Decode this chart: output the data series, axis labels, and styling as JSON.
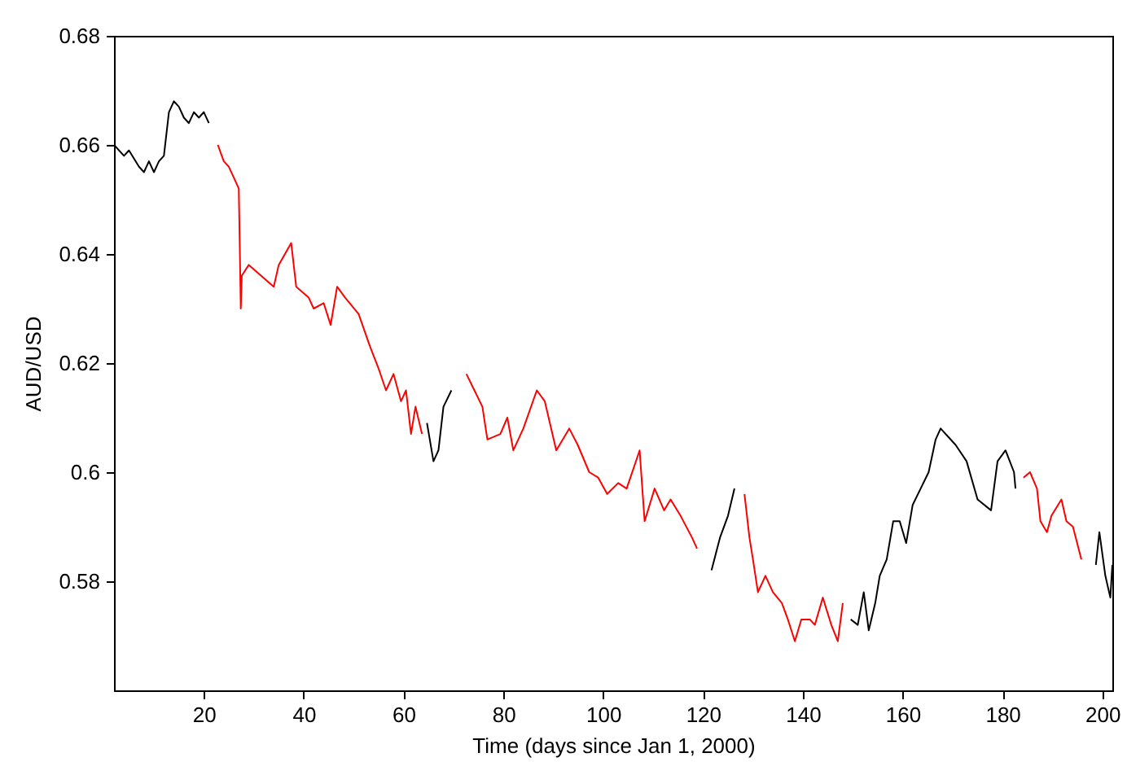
{
  "chart_data": {
    "type": "line",
    "xlabel": "Time (days since Jan 1, 2000)",
    "ylabel": "AUD/USD",
    "xlim": [
      2,
      202
    ],
    "xticks": [
      20,
      40,
      60,
      80,
      100,
      120,
      140,
      160,
      180,
      200
    ],
    "ylim": [
      0.56,
      0.68
    ],
    "yticks": [
      0.58,
      0.6,
      0.62,
      0.64,
      0.66,
      0.68
    ],
    "grid": false,
    "line_style": "solid",
    "marker": "none",
    "series": [
      {
        "color": "#000000",
        "x": [
          2,
          4,
          5,
          7,
          8,
          9,
          10,
          11,
          12,
          13,
          14,
          15,
          16,
          17,
          18,
          19,
          20,
          21,
          21.5,
          64.7,
          66,
          67,
          68,
          69.6,
          70,
          121.7,
          123.4,
          125,
          126.3,
          127,
          149.6,
          151,
          152.2,
          153.2,
          154.5,
          155.4,
          156.8,
          158.1,
          159.4,
          160.7,
          162,
          163.6,
          165.2,
          166.6,
          167.6,
          170.6,
          172.8,
          175,
          177.7,
          179,
          180.6,
          182.3,
          182.6,
          183,
          198.7,
          199.4,
          200.6,
          201.6,
          202
        ],
        "values": [
          0.66,
          0.658,
          0.659,
          0.656,
          0.655,
          0.657,
          0.655,
          0.657,
          0.658,
          0.666,
          0.668,
          0.667,
          0.665,
          0.664,
          0.666,
          0.665,
          0.666,
          0.664,
          null,
          0.609,
          0.602,
          0.604,
          0.612,
          0.615,
          null,
          0.582,
          0.588,
          0.592,
          0.597,
          null,
          0.573,
          0.572,
          0.578,
          0.571,
          0.576,
          0.581,
          0.584,
          0.591,
          0.591,
          0.587,
          0.594,
          0.597,
          0.6,
          0.606,
          0.608,
          0.605,
          0.602,
          0.595,
          0.593,
          0.602,
          0.604,
          0.6,
          0.597,
          null,
          0.583,
          0.589,
          0.581,
          0.577,
          0.583
        ]
      },
      {
        "color": "#ff0000",
        "x": [
          22.8,
          24,
          25,
          26,
          27,
          27.4,
          27.6,
          29,
          34,
          35,
          37.5,
          38.5,
          41,
          42,
          44,
          45.4,
          46.7,
          48.3,
          51,
          53.3,
          55,
          56.5,
          58,
          59.5,
          60.5,
          61.5,
          62.4,
          63.7,
          64,
          72.6,
          74.2,
          75.8,
          76.8,
          79.4,
          80.8,
          82,
          84,
          86.7,
          88.3,
          90.6,
          93.2,
          94.9,
          97.2,
          99,
          100.8,
          103,
          104.7,
          107.3,
          108.3,
          110.3,
          112.2,
          113.5,
          115.5,
          117.8,
          118.8,
          119,
          128.3,
          129.3,
          130,
          131,
          132.5,
          134,
          135.8,
          137,
          138.4,
          139.7,
          141.4,
          142.4,
          144,
          145.7,
          147,
          148,
          148.5,
          184.2,
          185.5,
          186.9,
          187.6,
          188.9,
          189.8,
          191.8,
          192.8,
          194.1,
          195.8
        ],
        "values": [
          0.66,
          0.657,
          0.656,
          0.654,
          0.652,
          0.63,
          0.636,
          0.638,
          0.634,
          0.638,
          0.642,
          0.634,
          0.632,
          0.63,
          0.631,
          0.627,
          0.634,
          0.632,
          0.629,
          0.623,
          0.619,
          0.615,
          0.618,
          0.613,
          0.615,
          0.607,
          0.612,
          0.607,
          null,
          0.618,
          0.615,
          0.612,
          0.606,
          0.607,
          0.61,
          0.604,
          0.608,
          0.615,
          0.613,
          0.604,
          0.608,
          0.605,
          0.6,
          0.599,
          0.596,
          0.598,
          0.597,
          0.604,
          0.591,
          0.597,
          0.593,
          0.595,
          0.592,
          0.588,
          0.586,
          null,
          0.596,
          0.588,
          0.584,
          0.578,
          0.581,
          0.578,
          0.576,
          0.573,
          0.569,
          0.573,
          0.573,
          0.572,
          0.577,
          0.572,
          0.569,
          0.576,
          null,
          0.599,
          0.6,
          0.597,
          0.591,
          0.589,
          0.592,
          0.595,
          0.591,
          0.59,
          0.584
        ]
      }
    ]
  }
}
